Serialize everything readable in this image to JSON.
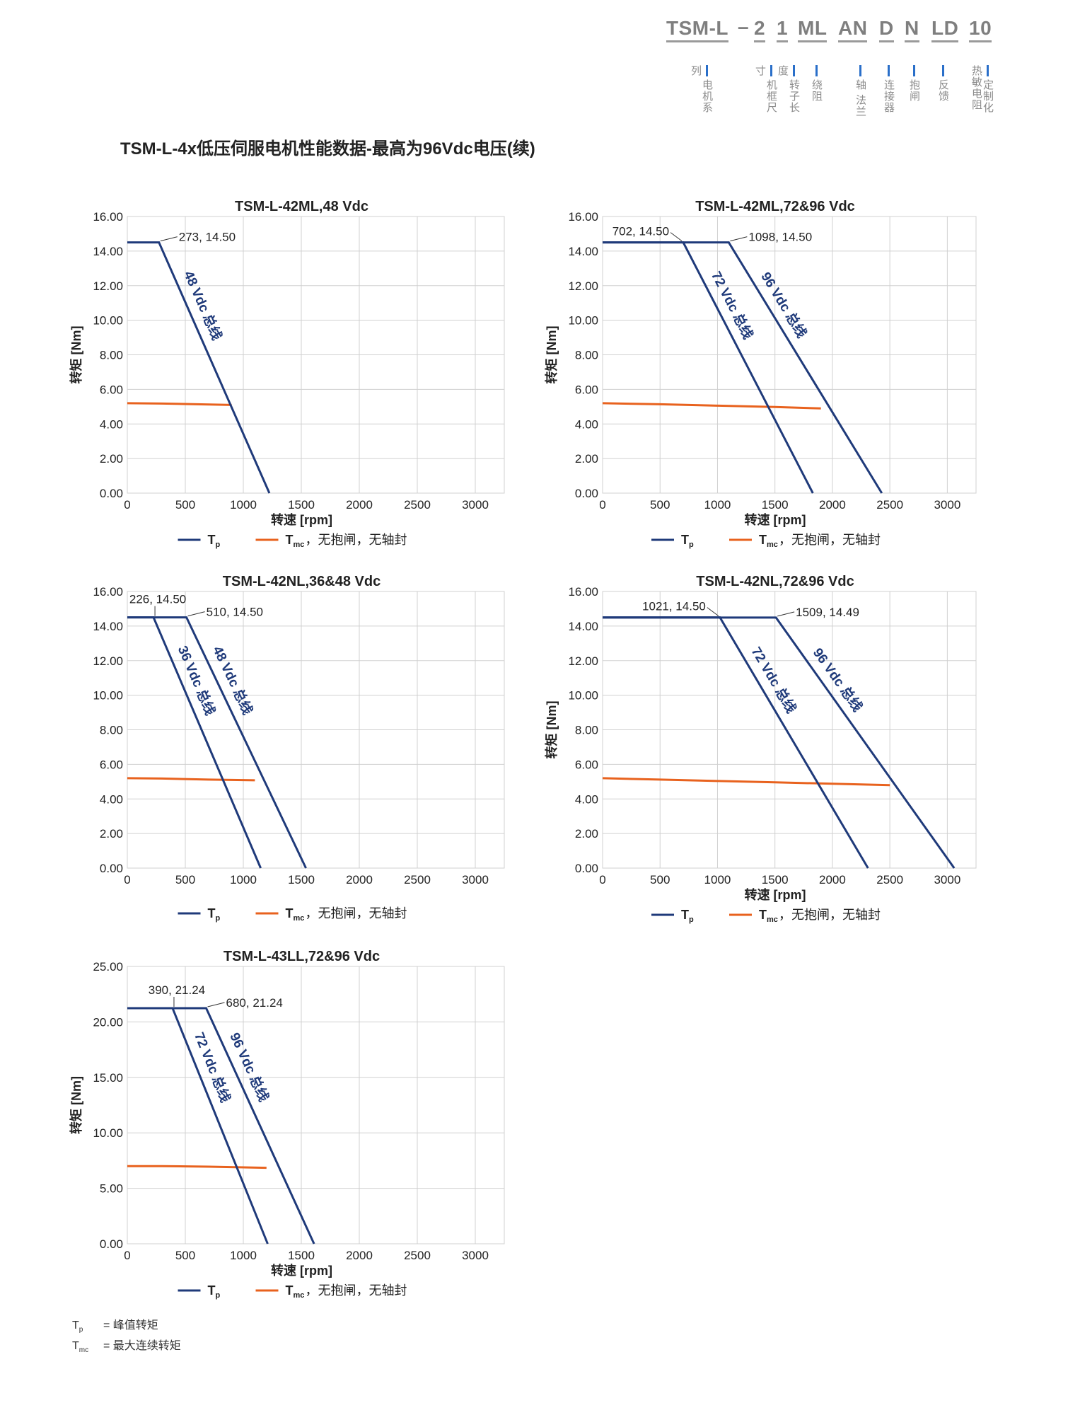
{
  "header": {
    "code_segments": [
      "TSM-L",
      "–",
      "2",
      "1",
      "ML",
      "AN",
      "D",
      "N",
      "LD",
      "10"
    ],
    "segment_labels": [
      "电机系列",
      "机框尺寸",
      "转子长度",
      "绕阻",
      "轴 法兰",
      "连接器",
      "抱闸",
      "反馈",
      "定制化 热敏电阻"
    ]
  },
  "page_title": "TSM-L-4x低压伺服电机性能数据-最高为96Vdc电压(续)",
  "colors": {
    "tp": "#1f3a7a",
    "tmc": "#e8621e",
    "grid": "#d0d0d0",
    "series_label": "#1f3a7a"
  },
  "legend": {
    "tp_symbol": "T",
    "tp_sub": "p",
    "tmc_symbol": "T",
    "tmc_sub": "mc",
    "tmc_suffix": "，无抱闸，无轴封"
  },
  "footnote": {
    "tp_sym": "T",
    "tp_sub": "p",
    "tp_desc": "= 峰值转矩",
    "tmc_sym": "T",
    "tmc_sub": "mc",
    "tmc_desc": "= 最大连续转矩"
  },
  "chart_data": [
    {
      "type": "line",
      "title": "TSM-L-42ML,48 Vdc",
      "xlabel": "转速 [rpm]",
      "ylabel": "转矩 [Nm]",
      "xlim": [
        0,
        3250
      ],
      "ylim": [
        0,
        16
      ],
      "xticks": [
        0,
        500,
        1000,
        1500,
        2000,
        2500,
        3000
      ],
      "yticks": [
        0,
        2,
        4,
        6,
        8,
        10,
        12,
        14,
        16
      ],
      "ytick_labels": [
        "0.00",
        "2.00",
        "4.00",
        "6.00",
        "8.00",
        "10.00",
        "12.00",
        "14.00",
        "16.00"
      ],
      "grid": true,
      "legend_position": "bottom",
      "series": [
        {
          "name": "48 Vdc 总线",
          "kind": "tp",
          "x": [
            0,
            273,
            1225
          ],
          "y": [
            14.5,
            14.5,
            0
          ]
        }
      ],
      "tmc": {
        "x": [
          0,
          300,
          600,
          900
        ],
        "y": [
          5.2,
          5.18,
          5.14,
          5.1
        ]
      },
      "annotations": [
        {
          "text": "273, 14.50",
          "x": 273,
          "y": 14.5,
          "side": "right"
        }
      ]
    },
    {
      "type": "line",
      "title": "TSM-L-42ML,72&96 Vdc",
      "xlabel": "转速 [rpm]",
      "ylabel": "转矩 [Nm]",
      "xlim": [
        0,
        3250
      ],
      "ylim": [
        0,
        16
      ],
      "xticks": [
        0,
        500,
        1000,
        1500,
        2000,
        2500,
        3000
      ],
      "yticks": [
        0,
        2,
        4,
        6,
        8,
        10,
        12,
        14,
        16
      ],
      "ytick_labels": [
        "0.00",
        "2.00",
        "4.00",
        "6.00",
        "8.00",
        "10.00",
        "12.00",
        "14.00",
        "16.00"
      ],
      "grid": true,
      "legend_position": "bottom",
      "series": [
        {
          "name": "72 Vdc 总线",
          "kind": "tp",
          "x": [
            0,
            702,
            1830
          ],
          "y": [
            14.5,
            14.5,
            0
          ]
        },
        {
          "name": "96 Vdc 总线",
          "kind": "tp",
          "x": [
            0,
            1098,
            2430
          ],
          "y": [
            14.5,
            14.5,
            0
          ]
        }
      ],
      "tmc": {
        "x": [
          0,
          500,
          1000,
          1500,
          1900
        ],
        "y": [
          5.2,
          5.14,
          5.06,
          4.98,
          4.9
        ]
      },
      "annotations": [
        {
          "text": "702, 14.50",
          "x": 702,
          "y": 14.5,
          "side": "left"
        },
        {
          "text": "1098, 14.50",
          "x": 1098,
          "y": 14.5,
          "side": "right"
        }
      ]
    },
    {
      "type": "line",
      "title": "TSM-L-42NL,36&48 Vdc",
      "xlabel": "",
      "ylabel": "",
      "xlim": [
        0,
        3250
      ],
      "ylim": [
        0,
        16
      ],
      "xticks": [
        0,
        500,
        1000,
        1500,
        2000,
        2500,
        3000
      ],
      "yticks": [
        0,
        2,
        4,
        6,
        8,
        10,
        12,
        14,
        16
      ],
      "ytick_labels": [
        "0.00",
        "2.00",
        "4.00",
        "6.00",
        "8.00",
        "10.00",
        "12.00",
        "14.00",
        "16.00"
      ],
      "grid": true,
      "legend_position": "bottom",
      "series": [
        {
          "name": "36 Vdc 总线",
          "kind": "tp",
          "x": [
            0,
            226,
            1150
          ],
          "y": [
            14.5,
            14.5,
            0
          ]
        },
        {
          "name": "48 Vdc 总线",
          "kind": "tp",
          "x": [
            0,
            510,
            1540
          ],
          "y": [
            14.5,
            14.5,
            0
          ]
        }
      ],
      "tmc": {
        "x": [
          0,
          300,
          700,
          1100
        ],
        "y": [
          5.2,
          5.18,
          5.12,
          5.08
        ]
      },
      "annotations": [
        {
          "text": "226, 14.50",
          "x": 226,
          "y": 14.5,
          "side": "above"
        },
        {
          "text": "510, 14.50",
          "x": 510,
          "y": 14.5,
          "side": "right"
        }
      ]
    },
    {
      "type": "line",
      "title": "TSM-L-42NL,72&96 Vdc",
      "xlabel": "转速 [rpm]",
      "ylabel": "转矩 [Nm]",
      "xlim": [
        0,
        3250
      ],
      "ylim": [
        0,
        16
      ],
      "xticks": [
        0,
        500,
        1000,
        1500,
        2000,
        2500,
        3000
      ],
      "yticks": [
        0,
        2,
        4,
        6,
        8,
        10,
        12,
        14,
        16
      ],
      "ytick_labels": [
        "0.00",
        "2.00",
        "4.00",
        "6.00",
        "8.00",
        "10.00",
        "12.00",
        "14.00",
        "16.00"
      ],
      "grid": true,
      "legend_position": "bottom",
      "series": [
        {
          "name": "72 Vdc 总线",
          "kind": "tp",
          "x": [
            0,
            1021,
            2310
          ],
          "y": [
            14.5,
            14.5,
            0
          ]
        },
        {
          "name": "96 Vdc 总线",
          "kind": "tp",
          "x": [
            0,
            1509,
            3060
          ],
          "y": [
            14.49,
            14.49,
            0
          ]
        }
      ],
      "tmc": {
        "x": [
          0,
          500,
          1000,
          1500,
          2000,
          2500
        ],
        "y": [
          5.2,
          5.12,
          5.04,
          4.96,
          4.88,
          4.8
        ]
      },
      "annotations": [
        {
          "text": "1021, 14.50",
          "x": 1021,
          "y": 14.5,
          "side": "left"
        },
        {
          "text": "1509, 14.49",
          "x": 1509,
          "y": 14.49,
          "side": "right"
        }
      ]
    },
    {
      "type": "line",
      "title": "TSM-L-43LL,72&96 Vdc",
      "xlabel": "转速 [rpm]",
      "ylabel": "转矩 [Nm]",
      "xlim": [
        0,
        3250
      ],
      "ylim": [
        0,
        25
      ],
      "xticks": [
        0,
        500,
        1000,
        1500,
        2000,
        2500,
        3000
      ],
      "yticks": [
        0,
        5,
        10,
        15,
        20,
        25
      ],
      "ytick_labels": [
        "0.00",
        "5.00",
        "10.00",
        "15.00",
        "20.00",
        "25.00"
      ],
      "grid": true,
      "legend_position": "bottom",
      "series": [
        {
          "name": "72 Vdc 总线",
          "kind": "tp",
          "x": [
            0,
            390,
            1210
          ],
          "y": [
            21.24,
            21.24,
            0
          ]
        },
        {
          "name": "96 Vdc 总线",
          "kind": "tp",
          "x": [
            0,
            680,
            1610
          ],
          "y": [
            21.24,
            21.24,
            0
          ]
        }
      ],
      "tmc": {
        "x": [
          0,
          300,
          700,
          1200
        ],
        "y": [
          7.0,
          7.0,
          6.95,
          6.85
        ]
      },
      "annotations": [
        {
          "text": "390, 21.24",
          "x": 390,
          "y": 21.24,
          "side": "above"
        },
        {
          "text": "680, 21.24",
          "x": 680,
          "y": 21.24,
          "side": "right"
        }
      ]
    }
  ]
}
